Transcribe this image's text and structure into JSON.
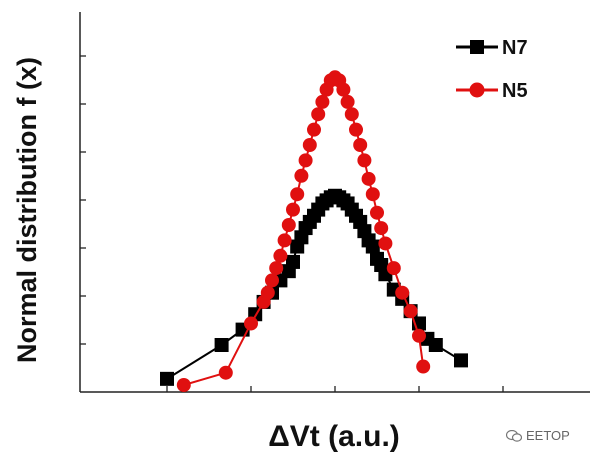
{
  "chart_data": {
    "type": "line",
    "title": "",
    "xlabel": "ΔVt (a.u.)",
    "ylabel": "Normal distribution f (x)",
    "xlim": [
      -2.5,
      2.5
    ],
    "ylim": [
      0,
      1.04
    ],
    "legend_position": "top-right",
    "grid": false,
    "series": [
      {
        "name": "N7",
        "color": "#000000",
        "marker": "square",
        "x": [
          -2.0,
          -1.35,
          -1.1,
          -0.95,
          -0.85,
          -0.75,
          -0.65,
          -0.55,
          -0.5,
          -0.45,
          -0.4,
          -0.35,
          -0.3,
          -0.25,
          -0.2,
          -0.15,
          -0.1,
          -0.05,
          0.0,
          0.05,
          0.1,
          0.15,
          0.2,
          0.25,
          0.3,
          0.35,
          0.4,
          0.45,
          0.5,
          0.55,
          0.6,
          0.7,
          0.8,
          0.9,
          1.0,
          1.1,
          1.2,
          1.5
        ],
        "y": [
          0.02,
          0.13,
          0.18,
          0.23,
          0.27,
          0.3,
          0.34,
          0.37,
          0.4,
          0.45,
          0.48,
          0.51,
          0.53,
          0.55,
          0.57,
          0.59,
          0.6,
          0.61,
          0.615,
          0.61,
          0.6,
          0.59,
          0.57,
          0.55,
          0.53,
          0.5,
          0.47,
          0.45,
          0.41,
          0.39,
          0.36,
          0.31,
          0.28,
          0.24,
          0.2,
          0.15,
          0.13,
          0.08
        ]
      },
      {
        "name": "N5",
        "color": "#e01010",
        "marker": "circle",
        "x": [
          -1.8,
          -1.3,
          -1.0,
          -0.85,
          -0.8,
          -0.75,
          -0.7,
          -0.65,
          -0.6,
          -0.55,
          -0.5,
          -0.45,
          -0.4,
          -0.35,
          -0.3,
          -0.25,
          -0.2,
          -0.15,
          -0.1,
          -0.05,
          0.0,
          0.05,
          0.1,
          0.15,
          0.2,
          0.25,
          0.3,
          0.35,
          0.4,
          0.45,
          0.5,
          0.55,
          0.6,
          0.7,
          0.8,
          0.9,
          1.0,
          1.05
        ],
        "y": [
          0.0,
          0.04,
          0.2,
          0.27,
          0.3,
          0.34,
          0.38,
          0.42,
          0.47,
          0.52,
          0.57,
          0.62,
          0.68,
          0.73,
          0.78,
          0.83,
          0.88,
          0.92,
          0.96,
          0.99,
          1.0,
          0.99,
          0.96,
          0.92,
          0.88,
          0.83,
          0.78,
          0.73,
          0.67,
          0.62,
          0.56,
          0.51,
          0.46,
          0.38,
          0.3,
          0.24,
          0.16,
          0.06
        ]
      }
    ]
  },
  "watermark": {
    "text": "EETOP",
    "icon": "wechat-icon"
  }
}
